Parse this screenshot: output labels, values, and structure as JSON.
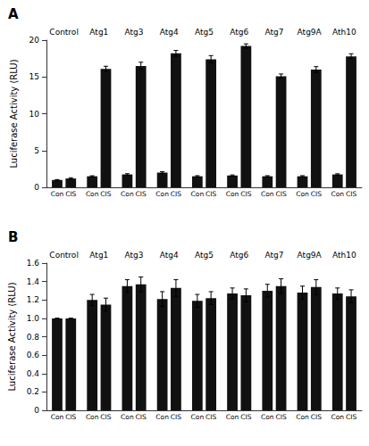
{
  "chart_data": [
    {
      "type": "bar",
      "title": "A",
      "categories": [
        "Control",
        "Atg1",
        "Atg3",
        "Atg4",
        "Atg5",
        "Atg6",
        "Atg7",
        "Atg9A",
        "Ath10"
      ],
      "series": [
        {
          "name": "Con",
          "color": "#111111",
          "values": [
            1.0,
            1.5,
            1.75,
            2.0,
            1.5,
            1.6,
            1.5,
            1.5,
            1.75
          ],
          "errors": [
            0.05,
            0.07,
            0.1,
            0.12,
            0.08,
            0.08,
            0.08,
            0.08,
            0.09
          ]
        },
        {
          "name": "CIS",
          "color": "#111111",
          "values": [
            1.2,
            16.1,
            16.5,
            18.2,
            17.4,
            19.2,
            15.1,
            16.0,
            17.8
          ],
          "errors": [
            0.1,
            0.35,
            0.5,
            0.4,
            0.5,
            0.3,
            0.3,
            0.4,
            0.35
          ]
        }
      ],
      "ylabel": "Luciferase Activity (RLU)",
      "ylim": [
        0,
        20
      ],
      "yticks": [
        0,
        5,
        10,
        15,
        20
      ],
      "grid": false
    },
    {
      "type": "bar",
      "title": "B",
      "categories": [
        "Control",
        "Atg1",
        "Atg3",
        "Atg4",
        "Atg5",
        "Atg6",
        "Atg7",
        "Atg9A",
        "Ath10"
      ],
      "series": [
        {
          "name": "Con",
          "color": "#111111",
          "values": [
            1.0,
            1.2,
            1.35,
            1.21,
            1.19,
            1.27,
            1.3,
            1.28,
            1.27
          ],
          "errors": [
            0.0,
            0.06,
            0.07,
            0.08,
            0.07,
            0.06,
            0.07,
            0.07,
            0.06
          ]
        },
        {
          "name": "CIS",
          "color": "#111111",
          "values": [
            1.0,
            1.15,
            1.37,
            1.33,
            1.22,
            1.25,
            1.35,
            1.34,
            1.24
          ],
          "errors": [
            0.0,
            0.07,
            0.08,
            0.09,
            0.07,
            0.07,
            0.08,
            0.08,
            0.07
          ]
        }
      ],
      "ylabel": "Luciferase Activity (RLU)",
      "ylim": [
        0,
        1.6
      ],
      "yticks": [
        0,
        0.2,
        0.4,
        0.6,
        0.8,
        {
          "value": 1,
          "label": "1.0"
        },
        1.2,
        1.4,
        1.6
      ],
      "grid": false
    }
  ]
}
